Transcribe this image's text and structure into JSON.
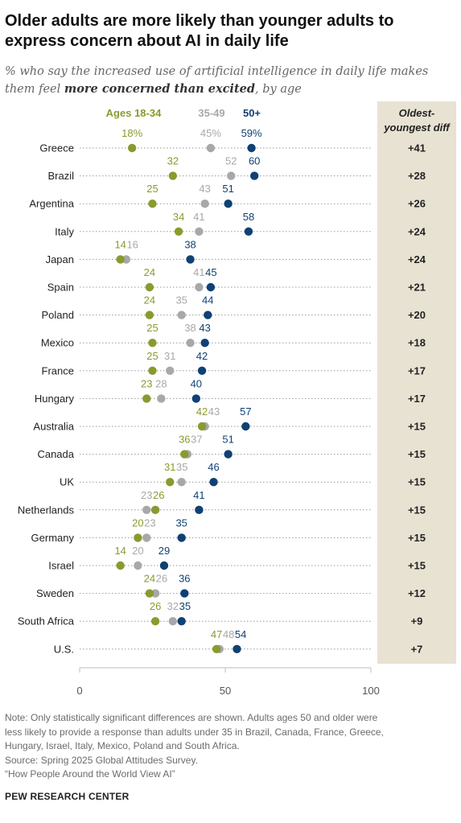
{
  "title": "Older adults are more likely than younger adults to express concern about AI in daily life",
  "subtitle": {
    "pre": "% who say the increased use of artificial intelligence in daily life makes them feel ",
    "bold": "more concerned than excited",
    "post": ", by age"
  },
  "colors": {
    "ages_18_34": "#8a9a2e",
    "ages_35_49": "#a8a8a8",
    "ages_50_plus": "#0f4174",
    "diff_panel": "#e8e2d3"
  },
  "chart_data": {
    "type": "scatter",
    "subtype": "dot-plot",
    "categories": [
      "Greece",
      "Brazil",
      "Argentina",
      "Italy",
      "Japan",
      "Spain",
      "Poland",
      "Mexico",
      "France",
      "Hungary",
      "Australia",
      "Canada",
      "UK",
      "Netherlands",
      "Germany",
      "Israel",
      "Sweden",
      "South Africa",
      "U.S."
    ],
    "series": [
      {
        "name": "Ages 18-34",
        "values": [
          18,
          32,
          25,
          34,
          14,
          24,
          24,
          25,
          25,
          23,
          42,
          36,
          31,
          26,
          20,
          14,
          24,
          26,
          47
        ]
      },
      {
        "name": "35-49",
        "values": [
          45,
          52,
          43,
          41,
          16,
          41,
          35,
          38,
          31,
          28,
          43,
          37,
          35,
          23,
          23,
          20,
          26,
          32,
          48
        ]
      },
      {
        "name": "50+",
        "values": [
          59,
          60,
          51,
          58,
          38,
          45,
          44,
          43,
          42,
          40,
          57,
          51,
          46,
          41,
          35,
          29,
          36,
          35,
          54
        ]
      }
    ],
    "diff_header": "Oldest-youngest diff",
    "diff_values": [
      "+41",
      "+28",
      "+26",
      "+24",
      "+24",
      "+21",
      "+20",
      "+18",
      "+17",
      "+17",
      "+15",
      "+15",
      "+15",
      "+15",
      "+15",
      "+15",
      "+12",
      "+9",
      "+7"
    ],
    "xlim": [
      0,
      100
    ],
    "xticks": [
      0,
      50,
      100
    ],
    "first_label_suffix": "%",
    "grid": false,
    "legend_placement": "top"
  },
  "note": [
    "Note: Only statistically significant differences are shown. Adults ages 50 and older were",
    "less likely to provide a response than adults under 35 in Brazil, Canada, France, Greece,",
    "Hungary, Israel, Italy, Mexico, Poland and South Africa.",
    "Source: Spring 2025 Global Attitudes Survey.",
    "“How People Around the World View AI”"
  ],
  "footer": "PEW RESEARCH CENTER"
}
